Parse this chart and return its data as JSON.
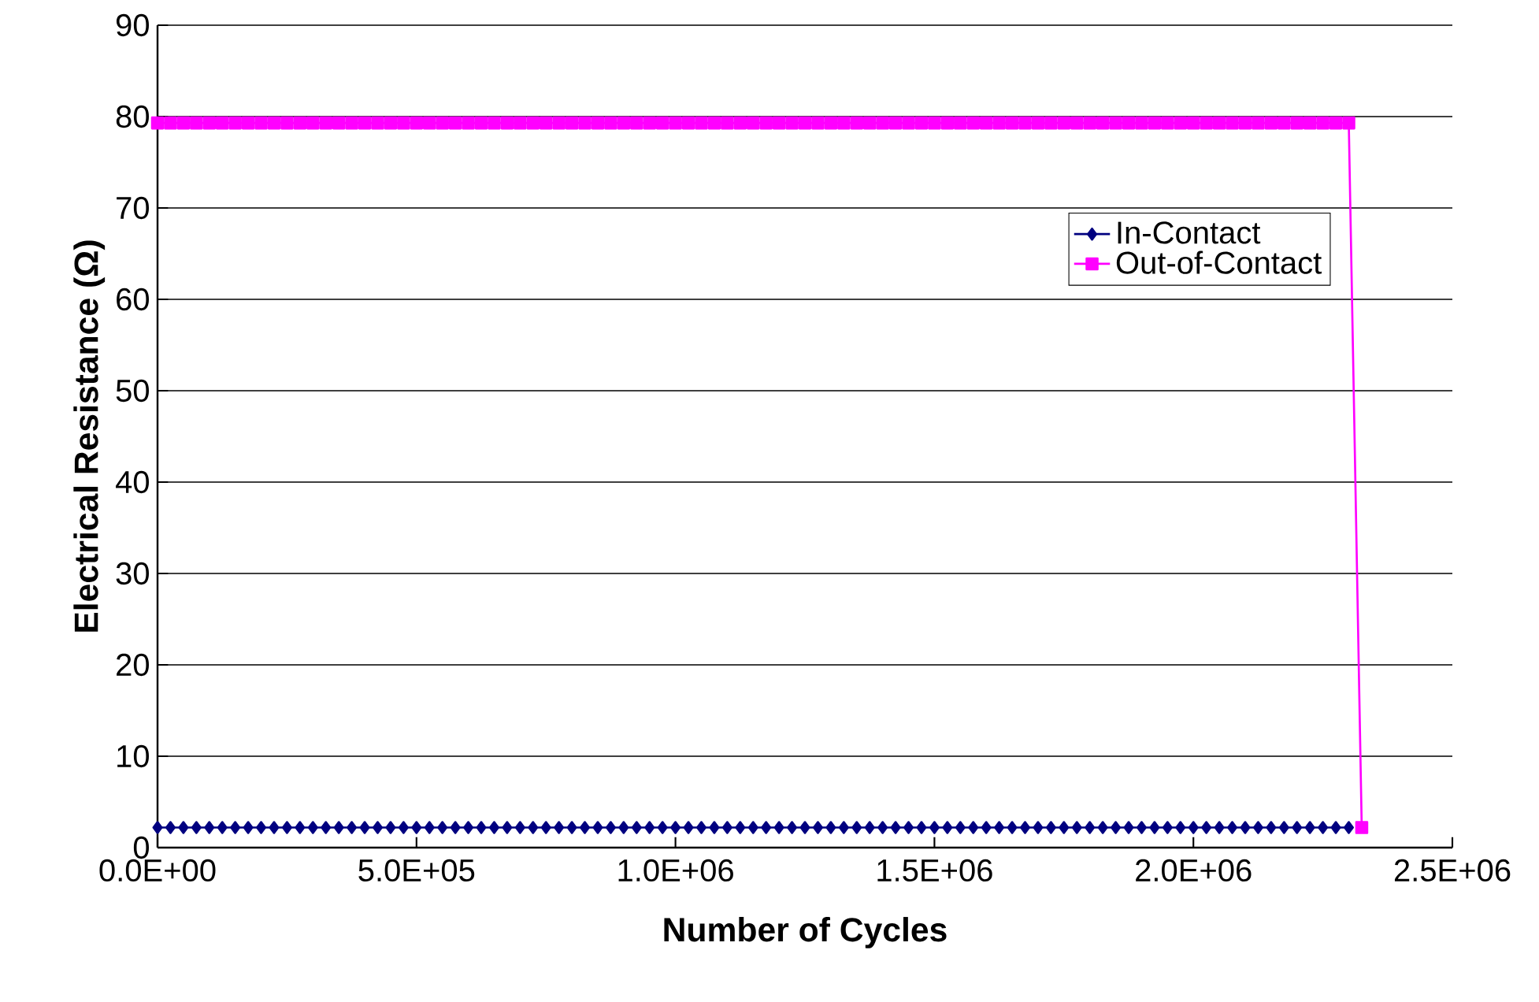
{
  "chart_data": {
    "type": "line",
    "xlabel": "Number of Cycles",
    "ylabel": "Electrical Resistance (Ω)",
    "xlim": [
      0,
      2500000
    ],
    "ylim": [
      0,
      90
    ],
    "xticks": [
      {
        "value": 0,
        "label": "0.0E+00"
      },
      {
        "value": 500000,
        "label": "5.0E+05"
      },
      {
        "value": 1000000,
        "label": "1.0E+06"
      },
      {
        "value": 1500000,
        "label": "1.5E+06"
      },
      {
        "value": 2000000,
        "label": "2.0E+06"
      },
      {
        "value": 2500000,
        "label": "2.5E+06"
      }
    ],
    "yticks": [
      0,
      10,
      20,
      30,
      40,
      50,
      60,
      70,
      80,
      90
    ],
    "grid": "y",
    "legend": "right",
    "x": [
      0,
      25000,
      50000,
      75000,
      100000,
      125000,
      150000,
      175000,
      200000,
      225000,
      250000,
      275000,
      300000,
      325000,
      350000,
      375000,
      400000,
      425000,
      450000,
      475000,
      500000,
      525000,
      550000,
      575000,
      600000,
      625000,
      650000,
      675000,
      700000,
      725000,
      750000,
      775000,
      800000,
      825000,
      850000,
      875000,
      900000,
      925000,
      950000,
      975000,
      1000000,
      1025000,
      1050000,
      1075000,
      1100000,
      1125000,
      1150000,
      1175000,
      1200000,
      1225000,
      1250000,
      1275000,
      1300000,
      1325000,
      1350000,
      1375000,
      1400000,
      1425000,
      1450000,
      1475000,
      1500000,
      1525000,
      1550000,
      1575000,
      1600000,
      1625000,
      1650000,
      1675000,
      1700000,
      1725000,
      1750000,
      1775000,
      1800000,
      1825000,
      1850000,
      1875000,
      1900000,
      1925000,
      1950000,
      1975000,
      2000000,
      2025000,
      2050000,
      2075000,
      2100000,
      2125000,
      2150000,
      2175000,
      2200000,
      2225000,
      2250000,
      2275000,
      2300000
    ],
    "series": [
      {
        "name": "In-Contact",
        "color": "#000080",
        "marker": "diamond",
        "values": [
          2.2,
          2.2,
          2.2,
          2.2,
          2.2,
          2.2,
          2.2,
          2.2,
          2.2,
          2.2,
          2.2,
          2.2,
          2.2,
          2.2,
          2.2,
          2.2,
          2.2,
          2.2,
          2.2,
          2.2,
          2.2,
          2.2,
          2.2,
          2.2,
          2.2,
          2.2,
          2.2,
          2.2,
          2.2,
          2.2,
          2.2,
          2.2,
          2.2,
          2.2,
          2.2,
          2.2,
          2.2,
          2.2,
          2.2,
          2.2,
          2.2,
          2.2,
          2.2,
          2.2,
          2.2,
          2.2,
          2.2,
          2.2,
          2.2,
          2.2,
          2.2,
          2.2,
          2.2,
          2.2,
          2.2,
          2.2,
          2.2,
          2.2,
          2.2,
          2.2,
          2.2,
          2.2,
          2.2,
          2.2,
          2.2,
          2.2,
          2.2,
          2.2,
          2.2,
          2.2,
          2.2,
          2.2,
          2.2,
          2.2,
          2.2,
          2.2,
          2.2,
          2.2,
          2.2,
          2.2,
          2.2,
          2.2,
          2.2,
          2.2,
          2.2,
          2.2,
          2.2,
          2.2,
          2.2,
          2.2,
          2.2,
          2.2,
          2.2
        ]
      },
      {
        "name": "Out-of-Contact",
        "color": "#ff00ff",
        "marker": "square",
        "x": [
          0,
          25000,
          50000,
          75000,
          100000,
          125000,
          150000,
          175000,
          200000,
          225000,
          250000,
          275000,
          300000,
          325000,
          350000,
          375000,
          400000,
          425000,
          450000,
          475000,
          500000,
          525000,
          550000,
          575000,
          600000,
          625000,
          650000,
          675000,
          700000,
          725000,
          750000,
          775000,
          800000,
          825000,
          850000,
          875000,
          900000,
          925000,
          950000,
          975000,
          1000000,
          1025000,
          1050000,
          1075000,
          1100000,
          1125000,
          1150000,
          1175000,
          1200000,
          1225000,
          1250000,
          1275000,
          1300000,
          1325000,
          1350000,
          1375000,
          1400000,
          1425000,
          1450000,
          1475000,
          1500000,
          1525000,
          1550000,
          1575000,
          1600000,
          1625000,
          1650000,
          1675000,
          1700000,
          1725000,
          1750000,
          1775000,
          1800000,
          1825000,
          1850000,
          1875000,
          1900000,
          1925000,
          1950000,
          1975000,
          2000000,
          2025000,
          2050000,
          2075000,
          2100000,
          2125000,
          2150000,
          2175000,
          2200000,
          2225000,
          2250000,
          2275000,
          2300000,
          2325000
        ],
        "values": [
          79.3,
          79.3,
          79.3,
          79.3,
          79.3,
          79.3,
          79.3,
          79.3,
          79.3,
          79.3,
          79.3,
          79.3,
          79.3,
          79.3,
          79.3,
          79.3,
          79.3,
          79.3,
          79.3,
          79.3,
          79.3,
          79.3,
          79.3,
          79.3,
          79.3,
          79.3,
          79.3,
          79.3,
          79.3,
          79.3,
          79.3,
          79.3,
          79.3,
          79.3,
          79.3,
          79.3,
          79.3,
          79.3,
          79.3,
          79.3,
          79.3,
          79.3,
          79.3,
          79.3,
          79.3,
          79.3,
          79.3,
          79.3,
          79.3,
          79.3,
          79.3,
          79.3,
          79.3,
          79.3,
          79.3,
          79.3,
          79.3,
          79.3,
          79.3,
          79.3,
          79.3,
          79.3,
          79.3,
          79.3,
          79.3,
          79.3,
          79.3,
          79.3,
          79.3,
          79.3,
          79.3,
          79.3,
          79.3,
          79.3,
          79.3,
          79.3,
          79.3,
          79.3,
          79.3,
          79.3,
          79.3,
          79.3,
          79.3,
          79.3,
          79.3,
          79.3,
          79.3,
          79.3,
          79.3,
          79.3,
          79.3,
          79.3,
          79.3,
          2.2
        ]
      }
    ]
  }
}
